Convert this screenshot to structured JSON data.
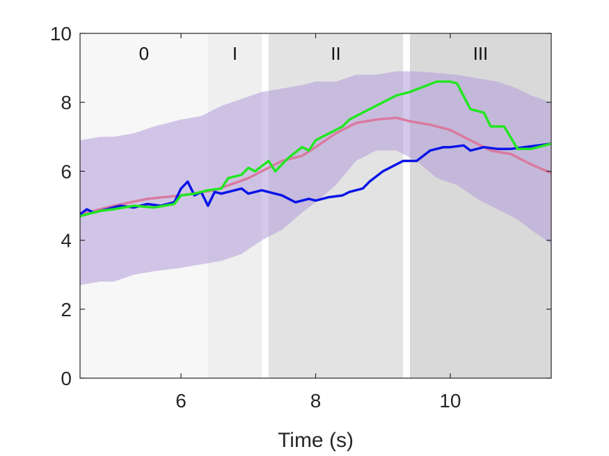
{
  "chart_data": {
    "type": "line",
    "title": "",
    "xlabel": "Time (s)",
    "ylabel": "",
    "xlim": [
      4.5,
      11.5
    ],
    "ylim": [
      0,
      10
    ],
    "xticks": [
      6,
      8,
      10
    ],
    "yticks": [
      0,
      2,
      4,
      6,
      8,
      10
    ],
    "grid": false,
    "legend": "none",
    "phases": [
      {
        "label": "0",
        "x0": 4.5,
        "x1": 6.4,
        "color": "#f7f7f7"
      },
      {
        "label": "I",
        "x0": 6.4,
        "x1": 7.2,
        "color": "#efefef"
      },
      {
        "label": "II",
        "x0": 7.3,
        "x1": 9.3,
        "color": "#e3e3e3"
      },
      {
        "label": "III",
        "x0": 9.4,
        "x1": 11.5,
        "color": "#d9d9d9"
      }
    ],
    "band": {
      "color": "#b39ddb",
      "x": [
        4.5,
        4.8,
        5.0,
        5.3,
        5.6,
        6.0,
        6.3,
        6.6,
        6.9,
        7.2,
        7.5,
        7.8,
        8.0,
        8.3,
        8.6,
        8.9,
        9.2,
        9.5,
        9.8,
        10.1,
        10.4,
        10.7,
        11.0,
        11.2,
        11.5
      ],
      "upper": [
        6.9,
        7.0,
        7.0,
        7.1,
        7.3,
        7.5,
        7.6,
        7.9,
        8.1,
        8.3,
        8.4,
        8.5,
        8.6,
        8.6,
        8.8,
        8.8,
        8.9,
        8.9,
        8.85,
        8.8,
        8.7,
        8.6,
        8.4,
        8.2,
        8.0
      ],
      "lower": [
        2.7,
        2.8,
        2.8,
        3.0,
        3.1,
        3.2,
        3.3,
        3.4,
        3.6,
        4.0,
        4.3,
        4.8,
        5.1,
        5.6,
        6.3,
        6.6,
        6.6,
        6.3,
        5.8,
        5.6,
        5.2,
        4.9,
        4.6,
        4.3,
        3.9
      ]
    },
    "series": [
      {
        "color": "#d97aa0",
        "x": [
          4.5,
          5.0,
          5.5,
          6.0,
          6.5,
          7.0,
          7.5,
          7.8,
          8.0,
          8.3,
          8.6,
          8.9,
          9.2,
          9.4,
          9.7,
          10.0,
          10.3,
          10.6,
          10.9,
          11.2,
          11.5
        ],
        "values": [
          4.75,
          5.0,
          5.2,
          5.3,
          5.45,
          5.8,
          6.3,
          6.45,
          6.7,
          7.1,
          7.4,
          7.5,
          7.55,
          7.45,
          7.35,
          7.2,
          6.9,
          6.6,
          6.5,
          6.2,
          5.95
        ]
      },
      {
        "color": "#0a14e6",
        "x": [
          4.5,
          4.6,
          4.7,
          4.9,
          5.0,
          5.1,
          5.3,
          5.5,
          5.7,
          5.9,
          6.0,
          6.1,
          6.2,
          6.3,
          6.4,
          6.5,
          6.6,
          6.8,
          6.9,
          7.0,
          7.2,
          7.3,
          7.5,
          7.6,
          7.7,
          7.9,
          8.0,
          8.2,
          8.4,
          8.5,
          8.7,
          8.8,
          9.0,
          9.1,
          9.3,
          9.5,
          9.7,
          9.9,
          10.0,
          10.2,
          10.3,
          10.5,
          10.7,
          10.9,
          11.1,
          11.3,
          11.5
        ],
        "values": [
          4.75,
          4.9,
          4.8,
          4.9,
          4.95,
          5.0,
          4.95,
          5.05,
          5.0,
          5.1,
          5.5,
          5.7,
          5.3,
          5.4,
          5.0,
          5.4,
          5.35,
          5.45,
          5.5,
          5.35,
          5.45,
          5.4,
          5.3,
          5.2,
          5.1,
          5.2,
          5.15,
          5.25,
          5.3,
          5.4,
          5.5,
          5.7,
          6.0,
          6.1,
          6.3,
          6.3,
          6.6,
          6.7,
          6.7,
          6.75,
          6.6,
          6.7,
          6.65,
          6.65,
          6.7,
          6.75,
          6.8
        ]
      },
      {
        "color": "#22e622",
        "x": [
          4.5,
          4.8,
          5.0,
          5.3,
          5.6,
          5.9,
          6.0,
          6.2,
          6.4,
          6.6,
          6.7,
          6.9,
          7.0,
          7.1,
          7.3,
          7.4,
          7.5,
          7.6,
          7.8,
          7.9,
          8.0,
          8.2,
          8.4,
          8.5,
          8.7,
          8.8,
          9.0,
          9.2,
          9.4,
          9.6,
          9.8,
          10.0,
          10.1,
          10.3,
          10.5,
          10.6,
          10.8,
          11.0,
          11.2,
          11.5
        ],
        "values": [
          4.7,
          4.85,
          4.9,
          5.0,
          4.95,
          5.05,
          5.3,
          5.35,
          5.45,
          5.5,
          5.8,
          5.9,
          6.1,
          6.0,
          6.3,
          6.0,
          6.2,
          6.4,
          6.7,
          6.6,
          6.9,
          7.1,
          7.3,
          7.5,
          7.7,
          7.8,
          8.0,
          8.2,
          8.3,
          8.45,
          8.6,
          8.6,
          8.55,
          7.8,
          7.7,
          7.3,
          7.3,
          6.65,
          6.65,
          6.8
        ]
      }
    ]
  }
}
